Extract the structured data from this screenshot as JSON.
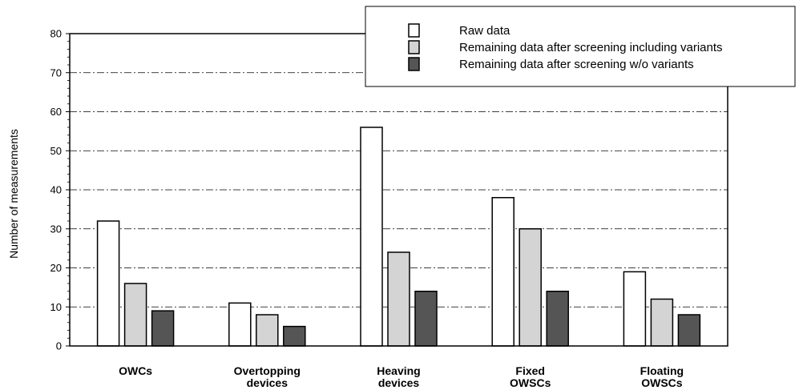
{
  "chart_data": {
    "type": "bar",
    "title": "",
    "xlabel": "",
    "ylabel": "Number of measurements",
    "ylim": [
      0,
      80
    ],
    "yticks": [
      0,
      10,
      20,
      30,
      40,
      50,
      60,
      70,
      80
    ],
    "grid": "horizontal dash-dot",
    "legend_position": "top-right",
    "categories": [
      [
        "OWCs"
      ],
      [
        "Overtopping",
        "devices"
      ],
      [
        "Heaving",
        "devices"
      ],
      [
        "Fixed",
        "OWSCs"
      ],
      [
        "Floating",
        "OWSCs"
      ]
    ],
    "series": [
      {
        "name": "Raw data",
        "color": "#ffffff",
        "values": [
          32,
          11,
          56,
          38,
          19
        ]
      },
      {
        "name": "Remaining data after screening including variants",
        "color": "#d4d4d4",
        "values": [
          16,
          8,
          24,
          30,
          12
        ]
      },
      {
        "name": "Remaining data after screening w/o variants",
        "color": "#555555",
        "values": [
          9,
          5,
          14,
          14,
          8
        ]
      }
    ]
  }
}
